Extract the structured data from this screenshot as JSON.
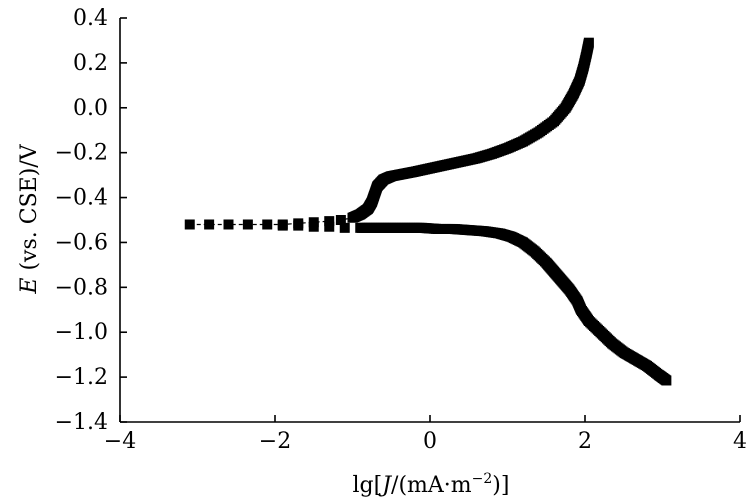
{
  "chart_data": {
    "type": "scatter",
    "title": "",
    "xlabel": "lg[J/(mA·m⁻²)]",
    "ylabel": "E (vs. CSE)/V",
    "xlabel_parts": {
      "prefix": "lg[",
      "var": "J",
      "middle": "/(mA·m",
      "sup": "−2",
      "suffix": ")]"
    },
    "ylabel_parts": {
      "var": "E",
      "rest": " (vs. CSE)/V"
    },
    "xlim": [
      -4,
      4
    ],
    "ylim": [
      -1.4,
      0.4
    ],
    "xticks": [
      -4,
      -2,
      0,
      2,
      4
    ],
    "xtick_labels": [
      "−4",
      "−2",
      "0",
      "2",
      "4"
    ],
    "yticks": [
      0.4,
      0.2,
      0.0,
      -0.2,
      -0.4,
      -0.6,
      -0.8,
      -1.0,
      -1.2,
      -1.4
    ],
    "ytick_labels": [
      "0.4",
      "0.2",
      "0.0",
      "−0.2",
      "−0.4",
      "−0.6",
      "−0.8",
      "−1.0",
      "−1.2",
      "−1.4"
    ],
    "grid": false,
    "legend": false,
    "marker": "square",
    "color": "#000000",
    "series": [
      {
        "branch": "anodic",
        "points": [
          [
            -3.1,
            -0.52
          ],
          [
            -2.85,
            -0.52
          ],
          [
            -2.6,
            -0.52
          ],
          [
            -2.35,
            -0.52
          ],
          [
            -2.1,
            -0.52
          ],
          [
            -1.9,
            -0.52
          ],
          [
            -1.7,
            -0.515
          ],
          [
            -1.5,
            -0.51
          ],
          [
            -1.3,
            -0.505
          ],
          [
            -1.15,
            -0.5
          ],
          [
            -1.0,
            -0.49
          ],
          [
            -0.9,
            -0.475
          ],
          [
            -0.8,
            -0.45
          ],
          [
            -0.75,
            -0.42
          ],
          [
            -0.72,
            -0.39
          ],
          [
            -0.68,
            -0.35
          ],
          [
            -0.6,
            -0.32
          ],
          [
            -0.5,
            -0.305
          ],
          [
            -0.35,
            -0.295
          ],
          [
            -0.2,
            -0.285
          ],
          [
            0.0,
            -0.27
          ],
          [
            0.2,
            -0.255
          ],
          [
            0.4,
            -0.24
          ],
          [
            0.6,
            -0.225
          ],
          [
            0.8,
            -0.205
          ],
          [
            1.0,
            -0.18
          ],
          [
            1.2,
            -0.15
          ],
          [
            1.4,
            -0.11
          ],
          [
            1.6,
            -0.06
          ],
          [
            1.75,
            0.0
          ],
          [
            1.85,
            0.06
          ],
          [
            1.93,
            0.12
          ],
          [
            1.98,
            0.18
          ],
          [
            2.02,
            0.24
          ],
          [
            2.05,
            0.29
          ]
        ]
      },
      {
        "branch": "cathodic",
        "points": [
          [
            -1.9,
            -0.525
          ],
          [
            -1.7,
            -0.525
          ],
          [
            -1.5,
            -0.53
          ],
          [
            -1.3,
            -0.53
          ],
          [
            -1.1,
            -0.535
          ],
          [
            -0.9,
            -0.535
          ],
          [
            -0.7,
            -0.535
          ],
          [
            -0.5,
            -0.535
          ],
          [
            -0.3,
            -0.535
          ],
          [
            -0.1,
            -0.535
          ],
          [
            0.1,
            -0.54
          ],
          [
            0.3,
            -0.54
          ],
          [
            0.5,
            -0.545
          ],
          [
            0.7,
            -0.55
          ],
          [
            0.9,
            -0.56
          ],
          [
            1.05,
            -0.575
          ],
          [
            1.2,
            -0.6
          ],
          [
            1.35,
            -0.64
          ],
          [
            1.5,
            -0.69
          ],
          [
            1.6,
            -0.73
          ],
          [
            1.7,
            -0.77
          ],
          [
            1.8,
            -0.81
          ],
          [
            1.9,
            -0.86
          ],
          [
            1.95,
            -0.9
          ],
          [
            2.05,
            -0.95
          ],
          [
            2.2,
            -1.0
          ],
          [
            2.35,
            -1.05
          ],
          [
            2.5,
            -1.09
          ],
          [
            2.65,
            -1.12
          ],
          [
            2.8,
            -1.15
          ],
          [
            2.95,
            -1.19
          ],
          [
            3.05,
            -1.215
          ]
        ]
      }
    ]
  }
}
